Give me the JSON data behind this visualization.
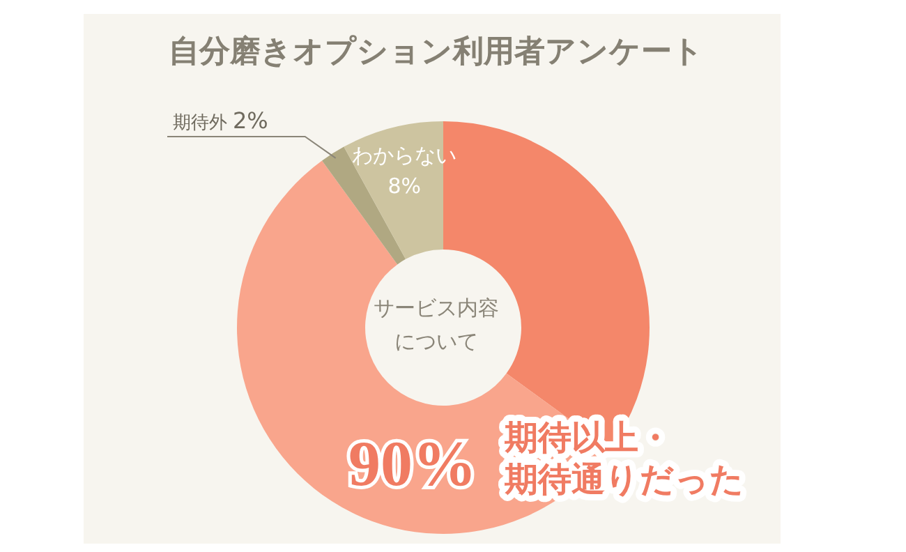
{
  "chart_data": {
    "type": "donut",
    "title": "自分磨きオプション利用者アンケート",
    "categories": [
      null,
      null,
      "期待外",
      "わからない"
    ],
    "values": [
      35,
      55,
      2,
      8
    ],
    "colors": [
      "#f4876a",
      "#f9a58c",
      "#b0a882",
      "#cdc4a0"
    ],
    "value_labels": [
      null,
      null,
      "2%",
      "8%"
    ],
    "annotations": [
      "サービス内容",
      "について",
      "90%",
      "期待以上・",
      "期待通りだった"
    ]
  }
}
